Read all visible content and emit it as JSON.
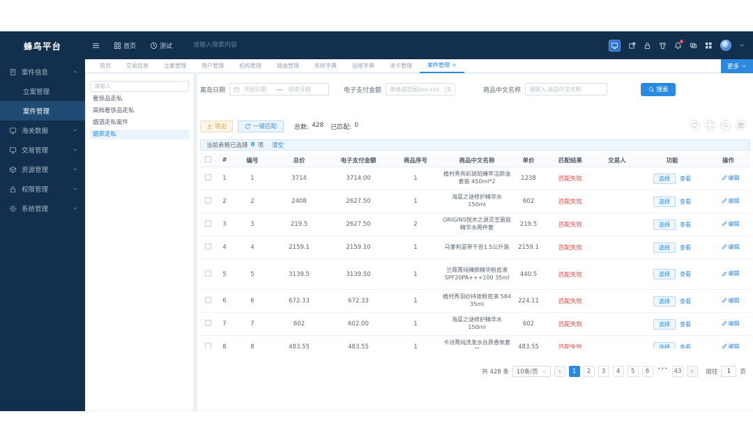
{
  "app": {
    "title": "蜂鸟平台"
  },
  "navbar": {
    "search_placeholder": "请输入搜索内容",
    "tags": [
      {
        "label": "首页",
        "icon": "grid-icon"
      },
      {
        "label": "测试",
        "icon": "clock-icon"
      }
    ],
    "icons": [
      {
        "name": "monitor-icon",
        "highlighted": true,
        "badge": false
      },
      {
        "name": "share-icon",
        "highlighted": false,
        "badge": false
      },
      {
        "name": "lock-icon",
        "highlighted": false,
        "badge": false
      },
      {
        "name": "theme-icon",
        "highlighted": false,
        "badge": false
      },
      {
        "name": "bell-icon",
        "highlighted": false,
        "badge": true
      },
      {
        "name": "message-icon",
        "highlighted": false,
        "badge": false
      },
      {
        "name": "apps-icon",
        "highlighted": false,
        "badge": false
      }
    ]
  },
  "sidebar": {
    "items": [
      {
        "label": "案件信息",
        "icon": "document-icon",
        "expanded": true,
        "children": [
          {
            "label": "立案管理",
            "active": false
          },
          {
            "label": "案件管理",
            "active": true
          }
        ]
      },
      {
        "label": "海关数据",
        "icon": "monitor-icon",
        "expanded": false,
        "children": []
      },
      {
        "label": "交易管理",
        "icon": "monitor-icon",
        "expanded": false,
        "children": []
      },
      {
        "label": "资源管理",
        "icon": "cube-icon",
        "expanded": false,
        "children": []
      },
      {
        "label": "权限管理",
        "icon": "lock-icon",
        "expanded": false,
        "children": []
      },
      {
        "label": "系统管理",
        "icon": "gear-icon",
        "expanded": false,
        "children": []
      }
    ]
  },
  "tabs": {
    "items": [
      "首页",
      "交易信息",
      "立案管理",
      "用户管理",
      "机构管理",
      "路由管理",
      "系统字典",
      "运维字典",
      "读卡管理",
      "案件管理"
    ],
    "active": "案件管理",
    "more_label": "更多"
  },
  "tree_panel": {
    "search_placeholder": "请输入",
    "items": [
      {
        "label": "奢侈品走私",
        "active": false
      },
      {
        "label": "高档奢侈品走私",
        "active": false
      },
      {
        "label": "烟酒走私案件",
        "active": false
      },
      {
        "label": "烟草走私",
        "active": true
      }
    ]
  },
  "filters": {
    "date_label": "离岛日期",
    "date_start_placeholder": "开始日期",
    "date_separator": "~",
    "date_end_placeholder": "结束日期",
    "amount_label": "电子支付金额",
    "amount_placeholder": "单值或范围xxx-xxx （双闭区间）",
    "name_label": "商品中文名称",
    "name_placeholder": "请输入 商品中文名称",
    "search_button": "搜索"
  },
  "toolbar": {
    "export_label": "导出",
    "match_label": "一键匹配",
    "total_label": "总数:",
    "total_value": "428",
    "matched_label": "已匹配:",
    "matched_value": "0"
  },
  "selection_bar": {
    "prefix": "当前表格已选择",
    "count": "0",
    "suffix": "项",
    "clear_label": "清空"
  },
  "table": {
    "columns": [
      "#",
      "编号",
      "总价",
      "电子支付金额",
      "商品序号",
      "商品中文名称",
      "单价",
      "匹配结果",
      "交易人",
      "功能",
      "操作"
    ],
    "actions": {
      "select": "选择",
      "view": "查看",
      "edit": "编辑"
    },
    "rows": [
      {
        "index": "1",
        "code": "1",
        "total": "3714",
        "epay": "3714.00",
        "seq": "1",
        "name": "植村秀亮彩琥珀臻萃洁颜油套装 450ml*2",
        "unit": "1238",
        "match": "匹配失败",
        "trader": ""
      },
      {
        "index": "2",
        "code": "2",
        "total": "2408",
        "epay": "2627.50",
        "seq": "1",
        "name": "海蓝之谜修护精华水 150ml",
        "unit": "602",
        "match": "匹配失败",
        "trader": ""
      },
      {
        "index": "3",
        "code": "3",
        "total": "219.5",
        "epay": "2627.50",
        "seq": "2",
        "name": "ORIGINS悦木之源灵芝菌菇精华水两件套",
        "unit": "219.5",
        "match": "匹配失败",
        "trader": ""
      },
      {
        "index": "4",
        "code": "4",
        "total": "2159.1",
        "epay": "2159.10",
        "seq": "1",
        "name": "马爹利蓝带干邑1.5公升装",
        "unit": "2159.1",
        "match": "匹配失败",
        "trader": ""
      },
      {
        "index": "5",
        "code": "5",
        "total": "3139.5",
        "epay": "3139.50",
        "seq": "1",
        "name": "兰蔻菁纯臻颜精华粉底液SPF20PA+++100 35ml",
        "unit": "440.5",
        "match": "匹配失败",
        "trader": ""
      },
      {
        "index": "6",
        "code": "6",
        "total": "672.33",
        "epay": "672.33",
        "seq": "1",
        "name": "植村秀羽纱持妆粉底液 584 35ml",
        "unit": "224.11",
        "match": "匹配失败",
        "trader": ""
      },
      {
        "index": "7",
        "code": "7",
        "total": "602",
        "epay": "602.00",
        "seq": "1",
        "name": "海蓝之谜修护精华水 150ml",
        "unit": "602",
        "match": "匹配失败",
        "trader": ""
      },
      {
        "index": "8",
        "code": "8",
        "total": "483.55",
        "epay": "483.55",
        "seq": "1",
        "name": "卡诗菁纯洗发水丝质香氛套装",
        "unit": "483.55",
        "match": "匹配失败",
        "trader": ""
      }
    ]
  },
  "pagination": {
    "total_label": "共 428 条",
    "page_size": "10条/页",
    "pages": [
      "1",
      "2",
      "3",
      "4",
      "5",
      "6",
      "•••",
      "43"
    ],
    "active_page": "1",
    "goto_label": "前往",
    "goto_value": "1",
    "goto_suffix": "页"
  },
  "colors": {
    "accent": "#2b8ae0",
    "danger": "#e34d4d",
    "navy": "#12304e"
  }
}
